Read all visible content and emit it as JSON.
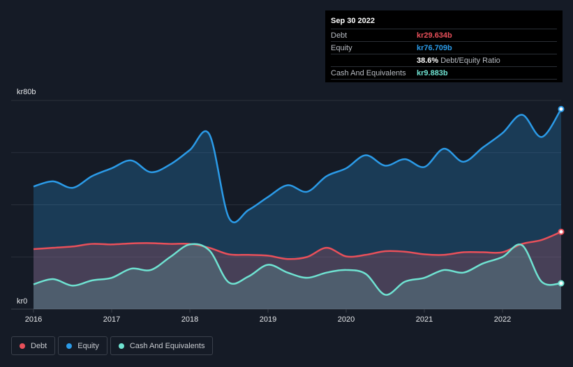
{
  "tooltip": {
    "date": "Sep 30 2022",
    "rows": [
      {
        "label": "Debt",
        "value": "kr29.634b",
        "color": "#e9505a"
      },
      {
        "label": "Equity",
        "value": "kr76.709b",
        "color": "#2b9be8"
      },
      {
        "label": "",
        "value": "38.6%",
        "extra": "Debt/Equity Ratio",
        "color": "#ffffff"
      },
      {
        "label": "Cash And Equivalents",
        "value": "kr9.883b",
        "color": "#6fe3d2"
      }
    ]
  },
  "legend": [
    {
      "label": "Debt",
      "color": "#e9505a"
    },
    {
      "label": "Equity",
      "color": "#2b9be8"
    },
    {
      "label": "Cash And Equivalents",
      "color": "#6fe3d2"
    }
  ],
  "chart_data": {
    "type": "area",
    "x_ticks": [
      "2016",
      "2017",
      "2018",
      "2019",
      "2020",
      "2021",
      "2022"
    ],
    "y_labels": {
      "top": "kr80b",
      "bottom": "kr0"
    },
    "ylim": [
      0,
      80
    ],
    "xlim": [
      2016.0,
      2022.75
    ],
    "grid": true,
    "series": [
      {
        "name": "Equity",
        "color": "#2b9be8",
        "x": [
          2016.0,
          2016.25,
          2016.5,
          2016.75,
          2017.0,
          2017.25,
          2017.5,
          2017.75,
          2018.0,
          2018.25,
          2018.5,
          2018.75,
          2019.0,
          2019.25,
          2019.5,
          2019.75,
          2020.0,
          2020.25,
          2020.5,
          2020.75,
          2021.0,
          2021.25,
          2021.5,
          2021.75,
          2022.0,
          2022.25,
          2022.5,
          2022.75
        ],
        "values": [
          47,
          49,
          46.5,
          51,
          54,
          57,
          52.5,
          55.5,
          61,
          67,
          35,
          38,
          43,
          47.5,
          45,
          51,
          54,
          59,
          55,
          57.5,
          54.5,
          61.5,
          56.5,
          62,
          67.5,
          74.5,
          66,
          76.709
        ]
      },
      {
        "name": "Debt",
        "color": "#e9505a",
        "x": [
          2016.0,
          2016.25,
          2016.5,
          2016.75,
          2017.0,
          2017.25,
          2017.5,
          2017.75,
          2018.0,
          2018.25,
          2018.5,
          2018.75,
          2019.0,
          2019.25,
          2019.5,
          2019.75,
          2020.0,
          2020.25,
          2020.5,
          2020.75,
          2021.0,
          2021.25,
          2021.5,
          2021.75,
          2022.0,
          2022.25,
          2022.5,
          2022.75
        ],
        "values": [
          23,
          23.5,
          24,
          25,
          24.8,
          25.2,
          25.3,
          25.0,
          25.0,
          23.5,
          21.0,
          20.8,
          20.5,
          19.2,
          20.0,
          23.5,
          20.2,
          20.8,
          22.2,
          22.0,
          21.0,
          20.8,
          21.8,
          21.8,
          21.8,
          25.0,
          26.5,
          29.634
        ]
      },
      {
        "name": "Cash And Equivalents",
        "color": "#6fe3d2",
        "x": [
          2016.0,
          2016.25,
          2016.5,
          2016.75,
          2017.0,
          2017.25,
          2017.5,
          2017.75,
          2018.0,
          2018.25,
          2018.5,
          2018.75,
          2019.0,
          2019.25,
          2019.5,
          2019.75,
          2020.0,
          2020.25,
          2020.5,
          2020.75,
          2021.0,
          2021.25,
          2021.5,
          2021.75,
          2022.0,
          2022.25,
          2022.5,
          2022.75
        ],
        "values": [
          9.5,
          11.5,
          9,
          11,
          12,
          15.5,
          15,
          20,
          24.8,
          22.5,
          10.2,
          12.5,
          17,
          14,
          12,
          14,
          15,
          13.5,
          5.5,
          10.5,
          12,
          15,
          14,
          17.5,
          20,
          24.5,
          10.5,
          9.883
        ]
      }
    ]
  }
}
